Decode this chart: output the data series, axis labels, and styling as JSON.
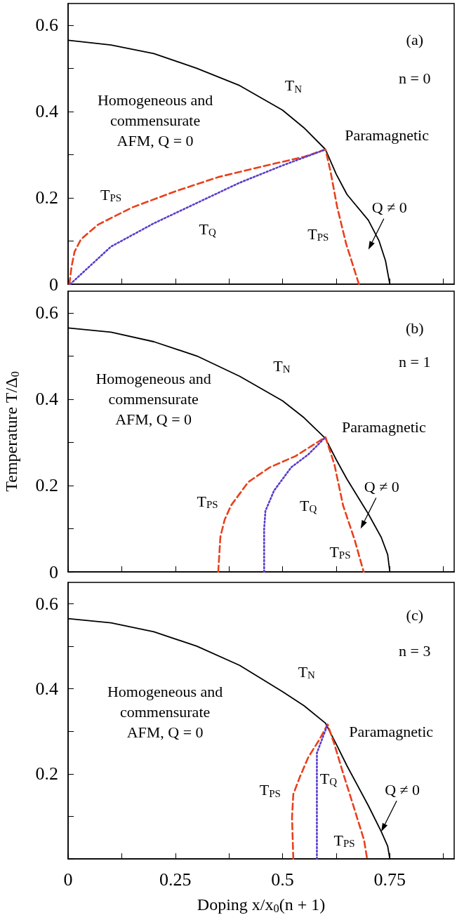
{
  "chart_data": [
    {
      "type": "line",
      "xlim": [
        0,
        0.9
      ],
      "ylim": [
        0,
        0.65
      ],
      "tick_labels": "y",
      "marker": "none",
      "xticks": [
        0,
        {
          "value": 0.125,
          "label": null
        },
        0.25,
        {
          "value": 0.375,
          "label": null
        },
        0.5,
        {
          "value": 0.625,
          "label": null
        },
        0.75,
        {
          "value": 0.875,
          "label": null
        }
      ],
      "yticks": [
        0,
        {
          "value": 0.1,
          "label": null
        },
        0.2,
        {
          "value": 0.3,
          "label": null
        },
        0.4,
        {
          "value": 0.5,
          "label": null
        },
        0.6
      ],
      "series": [
        {
          "color": "#000000",
          "line_style": "solid",
          "x": [
            0,
            0.1,
            0.2,
            0.3,
            0.4,
            0.5,
            0.55,
            0.6,
            0.625,
            0.65,
            0.7,
            0.725,
            0.74,
            0.75
          ],
          "values": [
            0.565,
            0.554,
            0.534,
            0.5,
            0.46,
            0.403,
            0.362,
            0.312,
            0.255,
            0.208,
            0.148,
            0.1,
            0.054,
            0
          ]
        },
        {
          "color": "#e8401c",
          "line_style": "dashed",
          "x": [
            0.003,
            0.008,
            0.015,
            0.03,
            0.07,
            0.15,
            0.25,
            0.35,
            0.45,
            0.55,
            0.6,
            0.612,
            0.627,
            0.648,
            0.678
          ],
          "values": [
            0,
            0.04,
            0.075,
            0.104,
            0.138,
            0.178,
            0.215,
            0.248,
            0.272,
            0.295,
            0.312,
            0.26,
            0.18,
            0.094,
            0
          ]
        },
        {
          "color": "#5a3ccc",
          "line_style": "dotted",
          "x": [
            0.005,
            0.1,
            0.2,
            0.3,
            0.4,
            0.5,
            0.6
          ],
          "values": [
            0,
            0.087,
            0.141,
            0.188,
            0.235,
            0.275,
            0.312
          ]
        }
      ],
      "annotations": [
        "(a)",
        "n = 0",
        "T$_{N}$",
        "Homogeneous and\ncommensurate\nAFM, Q = 0",
        "Paramagnetic",
        "T$_{PS}$",
        "T$_{Q}$",
        "T$_{PS}$",
        "Q ≠ 0"
      ]
    },
    {
      "type": "line",
      "xlim": [
        0,
        0.9
      ],
      "ylim": [
        0,
        0.65
      ],
      "tick_labels": "y",
      "marker": "none",
      "ylabel": "Temperature T/Δ$_{0}$",
      "xticks": [
        0,
        {
          "value": 0.125,
          "label": null
        },
        0.25,
        {
          "value": 0.375,
          "label": null
        },
        0.5,
        {
          "value": 0.625,
          "label": null
        },
        0.75,
        {
          "value": 0.875,
          "label": null
        }
      ],
      "yticks": [
        0,
        {
          "value": 0.1,
          "label": null
        },
        0.2,
        {
          "value": 0.3,
          "label": null
        },
        0.4,
        {
          "value": 0.5,
          "label": null
        },
        0.6
      ],
      "series": [
        {
          "color": "#000000",
          "line_style": "solid",
          "x": [
            0,
            0.1,
            0.2,
            0.3,
            0.4,
            0.5,
            0.55,
            0.6,
            0.625,
            0.65,
            0.7,
            0.73,
            0.745,
            0.75
          ],
          "values": [
            0.565,
            0.555,
            0.533,
            0.5,
            0.453,
            0.396,
            0.357,
            0.309,
            0.26,
            0.215,
            0.134,
            0.08,
            0.04,
            0
          ]
        },
        {
          "color": "#e8401c",
          "line_style": "dashed",
          "x": [
            0.35,
            0.355,
            0.365,
            0.38,
            0.42,
            0.47,
            0.53,
            0.6,
            0.621,
            0.641,
            0.668,
            0.689
          ],
          "values": [
            0,
            0.081,
            0.121,
            0.154,
            0.208,
            0.242,
            0.268,
            0.312,
            0.248,
            0.154,
            0.074,
            0
          ]
        },
        {
          "color": "#5a3ccc",
          "line_style": "dotted",
          "x": [
            0.457,
            0.457,
            0.46,
            0.48,
            0.52,
            0.56,
            0.6
          ],
          "values": [
            0,
            0.1,
            0.141,
            0.188,
            0.242,
            0.272,
            0.312
          ]
        }
      ],
      "annotations": [
        "(b)",
        "n = 1",
        "T$_{N}$",
        "Homogeneous and\ncommensurate\nAFM, Q = 0",
        "Paramagnetic",
        "T$_{PS}$",
        "T$_{Q}$",
        "T$_{PS}$",
        "Q ≠ 0"
      ]
    },
    {
      "type": "line",
      "xlim": [
        0,
        0.9
      ],
      "ylim": [
        0,
        0.65
      ],
      "marker": "none",
      "xlabel": "Doping x/x$_{0}$(n + 1)",
      "xticks": [
        0,
        {
          "value": 0.125,
          "label": null
        },
        0.25,
        {
          "value": 0.375,
          "label": null
        },
        0.5,
        {
          "value": 0.625,
          "label": null
        },
        0.75,
        {
          "value": 0.875,
          "label": null
        }
      ],
      "yticks": [
        {
          "value": 0,
          "label": null
        },
        {
          "value": 0.1,
          "label": null
        },
        0.2,
        {
          "value": 0.3,
          "label": null
        },
        0.4,
        {
          "value": 0.5,
          "label": null
        },
        0.6
      ],
      "series": [
        {
          "color": "#000000",
          "line_style": "solid",
          "x": [
            0,
            0.1,
            0.2,
            0.3,
            0.4,
            0.5,
            0.55,
            0.6,
            0.625,
            0.65,
            0.7,
            0.73,
            0.745,
            0.75
          ],
          "values": [
            0.565,
            0.555,
            0.534,
            0.5,
            0.455,
            0.393,
            0.36,
            0.319,
            0.27,
            0.219,
            0.125,
            0.064,
            0.03,
            0
          ]
        },
        {
          "color": "#e8401c",
          "line_style": "dashed",
          "x": [
            0.525,
            0.522,
            0.525,
            0.54,
            0.56,
            0.585,
            0.605,
            0.62,
            0.64,
            0.665,
            0.69,
            0.697
          ],
          "values": [
            0,
            0.098,
            0.152,
            0.192,
            0.239,
            0.279,
            0.316,
            0.272,
            0.205,
            0.125,
            0.044,
            0
          ]
        },
        {
          "color": "#5a3ccc",
          "line_style": "dotted",
          "x": [
            0.58,
            0.58,
            0.605
          ],
          "values": [
            0,
            0.249,
            0.316
          ]
        }
      ],
      "annotations": [
        "(c)",
        "n = 3",
        "T$_{N}$",
        "Homogeneous and\ncommensurate\nAFM, Q = 0",
        "Paramagnetic",
        "T$_{PS}$",
        "T$_{Q}$",
        "T$_{PS}$",
        {
          "text": "Q ≠ 0",
          "x": 0.73,
          "y": 0.064
        }
      ]
    }
  ]
}
